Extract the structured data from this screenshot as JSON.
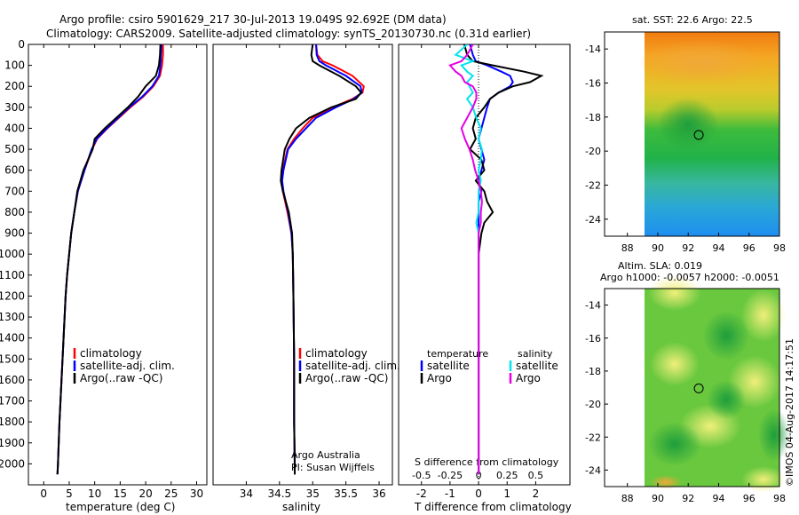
{
  "header": {
    "line1": "Argo profile: csiro 5901629_217 30-Jul-2013 19.049S 92.692E (DM data)",
    "line2": "Climatology: CARS2009. Satellite-adjusted climatology: synTS_20130730.nc (0.31d earlier)"
  },
  "colors": {
    "climatology": "#ff0000",
    "satellite": "#0000ff",
    "argo": "#000000",
    "sal_satellite": "#00e5ee",
    "sal_argo": "#e600e6"
  },
  "chart_data": [
    {
      "type": "line",
      "id": "temperature",
      "xlabel": "temperature (deg C)",
      "ylim": [
        2100,
        0
      ],
      "xlim": [
        -3,
        32
      ],
      "xticks": [
        "0",
        "5",
        "10",
        "15",
        "20",
        "25",
        "30"
      ],
      "yticks": [
        "0",
        "100",
        "200",
        "300",
        "400",
        "500",
        "600",
        "700",
        "800",
        "900",
        "1000",
        "1100",
        "1200",
        "1300",
        "1400",
        "1500",
        "1600",
        "1700",
        "1800",
        "1900",
        "2000"
      ],
      "depth": [
        0,
        50,
        100,
        150,
        200,
        250,
        300,
        400,
        450,
        500,
        600,
        700,
        800,
        900,
        1000,
        1100,
        1200,
        1400,
        1600,
        1800,
        2000,
        2050
      ],
      "series": [
        {
          "name": "climatology",
          "values": [
            23.4,
            23.4,
            23.2,
            22.8,
            21.5,
            19.5,
            17.0,
            12.5,
            10.5,
            9.5,
            8.0,
            6.7,
            6.0,
            5.4,
            5.0,
            4.6,
            4.3,
            3.9,
            3.5,
            3.1,
            2.8,
            2.7
          ]
        },
        {
          "name": "satellite-adj. clim.",
          "values": [
            23.1,
            23.0,
            22.9,
            22.6,
            21.3,
            19.3,
            16.8,
            12.4,
            10.4,
            9.4,
            8.0,
            6.7,
            6.0,
            5.4,
            5.0,
            4.6,
            4.3,
            3.9,
            3.5,
            3.1,
            2.8,
            2.7
          ]
        },
        {
          "name": "Argo(..raw -QC)",
          "values": [
            22.9,
            22.8,
            22.6,
            22.0,
            20.0,
            18.5,
            16.5,
            12.0,
            10.0,
            9.6,
            7.8,
            6.6,
            6.0,
            5.4,
            5.0,
            4.6,
            4.3,
            3.9,
            3.5,
            3.1,
            2.8,
            2.7
          ]
        }
      ],
      "legend": [
        "climatology",
        "satellite-adj. clim.",
        "Argo(..raw -QC)"
      ]
    },
    {
      "type": "line",
      "id": "salinity",
      "xlabel": "salinity",
      "ylim": [
        2100,
        0
      ],
      "xlim": [
        33.5,
        36.2
      ],
      "xticks": [
        "34",
        "34.5",
        "35",
        "35.5",
        "36"
      ],
      "depth": [
        0,
        50,
        80,
        100,
        150,
        200,
        230,
        260,
        300,
        350,
        400,
        450,
        500,
        600,
        650,
        700,
        800,
        900,
        1000,
        1200,
        1500,
        1800,
        2000,
        2050
      ],
      "series": [
        {
          "name": "climatology",
          "values": [
            35.05,
            35.07,
            35.15,
            35.3,
            35.6,
            35.77,
            35.75,
            35.6,
            35.3,
            35.0,
            34.85,
            34.72,
            34.62,
            34.55,
            34.53,
            34.55,
            34.62,
            34.68,
            34.7,
            34.71,
            34.72,
            34.72,
            34.73,
            34.73
          ]
        },
        {
          "name": "satellite-adj. clim.",
          "values": [
            35.05,
            35.06,
            35.1,
            35.2,
            35.5,
            35.72,
            35.74,
            35.62,
            35.35,
            35.05,
            34.9,
            34.75,
            34.63,
            34.56,
            34.54,
            34.56,
            34.63,
            34.68,
            34.7,
            34.71,
            34.72,
            34.72,
            34.73,
            34.73
          ]
        },
        {
          "name": "Argo(..raw -QC)",
          "values": [
            35.0,
            34.98,
            35.0,
            35.1,
            35.4,
            35.65,
            35.73,
            35.65,
            35.28,
            34.95,
            34.75,
            34.65,
            34.58,
            34.53,
            34.52,
            34.55,
            34.64,
            34.69,
            34.7,
            34.71,
            34.72,
            34.72,
            34.73,
            34.73
          ]
        }
      ],
      "legend": [
        "climatology",
        "satellite-adj. clim.",
        "Argo(..raw -QC)"
      ],
      "note1": "Argo Australia",
      "note2": "PI: Susan Wijffels"
    },
    {
      "type": "line",
      "id": "difference",
      "xlabel_bottom": "T difference from climatology",
      "xlabel_top": "S difference from climatology",
      "ylim": [
        2100,
        0
      ],
      "xlim": [
        -2.8,
        3.2
      ],
      "s_xlim": [
        -0.7,
        0.8
      ],
      "xticks": [
        "-2",
        "-1",
        "0",
        "1",
        "2"
      ],
      "s_xticks": [
        "-0.5",
        "-0.25",
        "0",
        "0.25",
        "0.5"
      ],
      "depth": [
        0,
        50,
        80,
        100,
        130,
        150,
        180,
        200,
        230,
        260,
        300,
        350,
        400,
        450,
        500,
        550,
        600,
        650,
        700,
        750,
        800,
        850,
        900,
        1000,
        1200,
        1500,
        2000,
        2050
      ],
      "series": [
        {
          "name": "T satellite",
          "values": [
            -0.3,
            -0.2,
            -0.1,
            0.3,
            0.8,
            1.1,
            1.2,
            1.1,
            0.7,
            0.4,
            0.3,
            0.2,
            0.1,
            0.0,
            0.1,
            0.2,
            0.1,
            0.0,
            0.1,
            0.0,
            0.0,
            0.0,
            0.0,
            0.0,
            0.0,
            0.0,
            0.0,
            0.0
          ]
        },
        {
          "name": "T Argo",
          "values": [
            -0.5,
            -0.4,
            -0.2,
            0.5,
            1.6,
            2.2,
            1.8,
            1.2,
            0.7,
            0.4,
            0.2,
            -0.1,
            -0.2,
            -0.1,
            -0.3,
            0.1,
            0.2,
            -0.1,
            0.2,
            0.3,
            0.5,
            0.2,
            0.1,
            0.0,
            0.0,
            0.0,
            0.0,
            0.0
          ]
        },
        {
          "name": "S satellite",
          "values": [
            -0.1,
            -0.2,
            -0.05,
            -0.15,
            -0.1,
            -0.05,
            -0.1,
            -0.08,
            -0.05,
            -0.1,
            -0.05,
            -0.02,
            0.02,
            0.0,
            0.03,
            0.02,
            0.0,
            0.02,
            0.0,
            0.0,
            0.0,
            -0.02,
            0.0,
            0.0,
            0.0,
            0.0,
            0.0,
            0.0
          ]
        },
        {
          "name": "S Argo",
          "values": [
            -0.05,
            -0.1,
            -0.15,
            -0.25,
            -0.2,
            -0.15,
            -0.12,
            -0.05,
            -0.02,
            -0.02,
            -0.05,
            -0.1,
            -0.15,
            -0.12,
            -0.08,
            -0.05,
            -0.03,
            0.0,
            0.02,
            0.03,
            0.02,
            0.02,
            0.0,
            0.0,
            0.0,
            0.0,
            0.0,
            0.0
          ]
        }
      ],
      "legend_temp_title": "temperature",
      "legend_sal_title": "salinity",
      "legend_temp": [
        "satellite",
        "Argo"
      ],
      "legend_sal": [
        "satellite",
        "Argo"
      ]
    },
    {
      "type": "heatmap",
      "id": "sst_map",
      "title": "sat. SST: 22.6  Argo: 22.5",
      "xlim": [
        86.5,
        98
      ],
      "ylim": [
        -25,
        -13
      ],
      "xticks": [
        "88",
        "90",
        "92",
        "94",
        "96",
        "98"
      ],
      "yticks": [
        "-14",
        "-16",
        "-18",
        "-20",
        "-22",
        "-24"
      ],
      "marker": {
        "lon": 92.692,
        "lat": -19.049
      }
    },
    {
      "type": "heatmap",
      "id": "sla_map",
      "title": "Altim. SLA: 0.019",
      "subtitle": "Argo h1000: -0.0057 h2000: -0.0051",
      "xlim": [
        86.5,
        98
      ],
      "ylim": [
        -25,
        -13
      ],
      "xticks": [
        "88",
        "90",
        "92",
        "94",
        "96",
        "98"
      ],
      "yticks": [
        "-14",
        "-16",
        "-18",
        "-20",
        "-22",
        "-24"
      ],
      "marker": {
        "lon": 92.692,
        "lat": -19.049
      }
    }
  ],
  "footer": {
    "credit": "©IMOS 04-Aug-2017 14:17:51"
  }
}
